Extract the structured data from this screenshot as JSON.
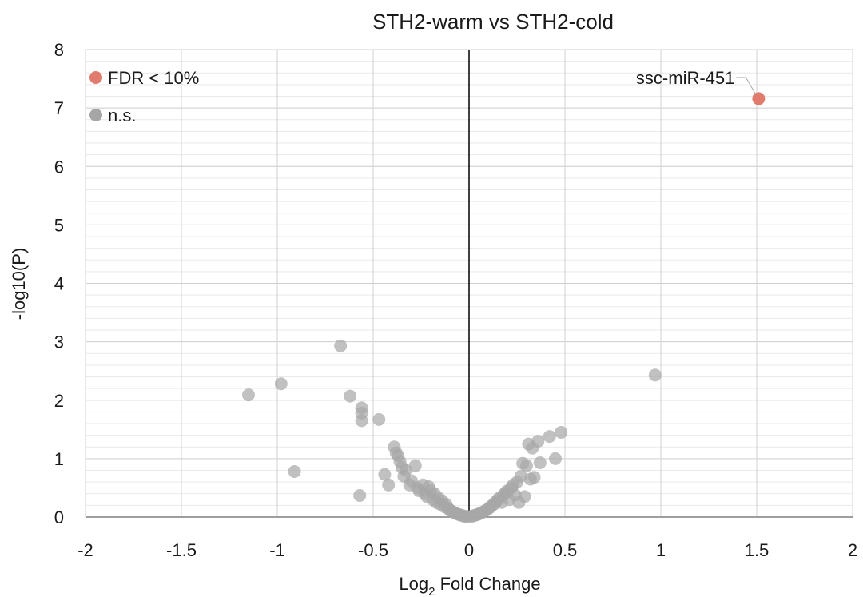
{
  "chart_data": {
    "type": "scatter",
    "title": "STH2-warm vs STH2-cold",
    "xlabel_main": "Log",
    "xlabel_sub": "2",
    "xlabel_rest": " Fold Change",
    "ylabel": "-log10(P)",
    "xlim": [
      -2,
      2
    ],
    "ylim": [
      0,
      8
    ],
    "xticks": [
      -2,
      -1.5,
      -1,
      -0.5,
      0,
      0.5,
      1,
      1.5,
      2
    ],
    "xtick_labels": [
      "-2",
      "-1.5",
      "-1",
      "-0.5",
      "0",
      "0.5",
      "1",
      "1.5",
      "2"
    ],
    "yticks": [
      0,
      1,
      2,
      3,
      4,
      5,
      6,
      7,
      8
    ],
    "ytick_labels": [
      "0",
      "1",
      "2",
      "3",
      "4",
      "5",
      "6",
      "7",
      "8"
    ],
    "grid": true,
    "legend_position": "top-left",
    "series": [
      {
        "name": "FDR < 10%",
        "color": "#e07b6e",
        "points": [
          [
            1.51,
            7.16
          ]
        ]
      },
      {
        "name": "n.s.",
        "color": "#a6a6a6",
        "points": [
          [
            -1.15,
            2.09
          ],
          [
            -0.98,
            2.28
          ],
          [
            -0.91,
            0.78
          ],
          [
            -0.67,
            2.93
          ],
          [
            -0.62,
            2.07
          ],
          [
            -0.57,
            0.37
          ],
          [
            -0.56,
            1.87
          ],
          [
            -0.56,
            1.78
          ],
          [
            -0.56,
            1.65
          ],
          [
            -0.47,
            1.67
          ],
          [
            -0.44,
            0.73
          ],
          [
            -0.42,
            0.55
          ],
          [
            -0.39,
            1.2
          ],
          [
            -0.38,
            1.1
          ],
          [
            -0.37,
            1.05
          ],
          [
            -0.36,
            0.95
          ],
          [
            -0.35,
            0.85
          ],
          [
            -0.34,
            0.7
          ],
          [
            -0.33,
            0.8
          ],
          [
            -0.31,
            0.55
          ],
          [
            -0.3,
            0.62
          ],
          [
            -0.28,
            0.88
          ],
          [
            -0.27,
            0.5
          ],
          [
            -0.26,
            0.45
          ],
          [
            -0.24,
            0.55
          ],
          [
            -0.23,
            0.4
          ],
          [
            -0.22,
            0.35
          ],
          [
            -0.21,
            0.52
          ],
          [
            -0.2,
            0.45
          ],
          [
            -0.19,
            0.3
          ],
          [
            -0.18,
            0.4
          ],
          [
            -0.17,
            0.25
          ],
          [
            -0.16,
            0.33
          ],
          [
            -0.15,
            0.22
          ],
          [
            -0.14,
            0.28
          ],
          [
            -0.13,
            0.18
          ],
          [
            -0.12,
            0.22
          ],
          [
            -0.11,
            0.15
          ],
          [
            -0.1,
            0.12
          ],
          [
            -0.09,
            0.1
          ],
          [
            -0.08,
            0.08
          ],
          [
            -0.07,
            0.07
          ],
          [
            -0.06,
            0.05
          ],
          [
            -0.05,
            0.04
          ],
          [
            -0.04,
            0.03
          ],
          [
            -0.03,
            0.02
          ],
          [
            -0.02,
            0.01
          ],
          [
            -0.01,
            0.01
          ],
          [
            0.01,
            0.01
          ],
          [
            0.02,
            0.02
          ],
          [
            0.03,
            0.03
          ],
          [
            0.04,
            0.04
          ],
          [
            0.05,
            0.05
          ],
          [
            0.06,
            0.07
          ],
          [
            0.07,
            0.08
          ],
          [
            0.08,
            0.1
          ],
          [
            0.09,
            0.12
          ],
          [
            0.1,
            0.14
          ],
          [
            0.11,
            0.17
          ],
          [
            0.12,
            0.2
          ],
          [
            0.13,
            0.22
          ],
          [
            0.14,
            0.26
          ],
          [
            0.15,
            0.3
          ],
          [
            0.16,
            0.33
          ],
          [
            0.17,
            0.25
          ],
          [
            0.18,
            0.38
          ],
          [
            0.19,
            0.42
          ],
          [
            0.2,
            0.45
          ],
          [
            0.21,
            0.3
          ],
          [
            0.22,
            0.5
          ],
          [
            0.23,
            0.55
          ],
          [
            0.24,
            0.38
          ],
          [
            0.25,
            0.6
          ],
          [
            0.26,
            0.25
          ],
          [
            0.27,
            0.7
          ],
          [
            0.28,
            0.92
          ],
          [
            0.29,
            0.35
          ],
          [
            0.3,
            0.88
          ],
          [
            0.31,
            1.25
          ],
          [
            0.32,
            0.65
          ],
          [
            0.33,
            1.18
          ],
          [
            0.34,
            0.68
          ],
          [
            0.36,
            1.3
          ],
          [
            0.37,
            0.93
          ],
          [
            0.42,
            1.38
          ],
          [
            0.45,
            1.0
          ],
          [
            0.48,
            1.45
          ],
          [
            0.97,
            2.43
          ]
        ]
      }
    ],
    "annotations": [
      {
        "text": "ssc-miR-451",
        "x": 1.51,
        "y": 7.16
      }
    ]
  }
}
